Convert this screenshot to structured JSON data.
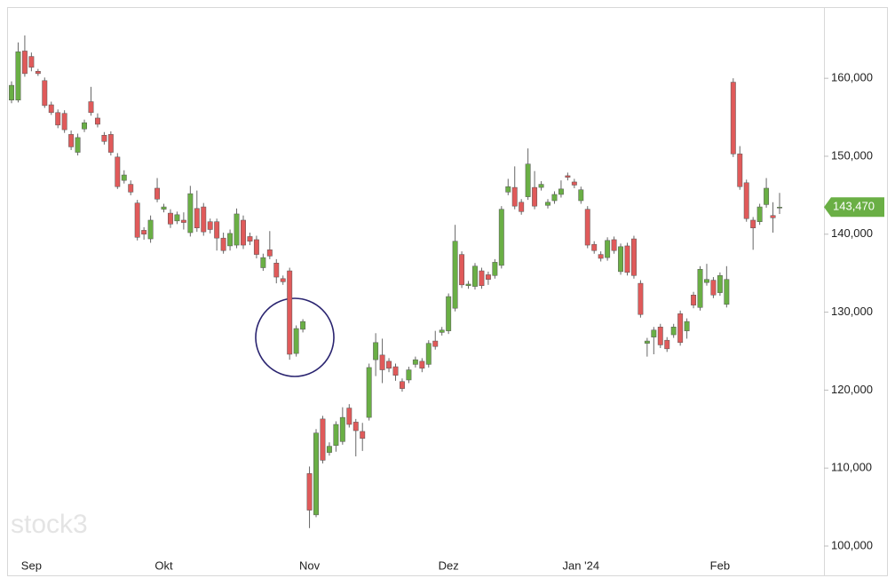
{
  "chart_data": {
    "type": "candlestick",
    "watermark": "stock3",
    "categories": [
      null,
      null,
      null,
      "Sep",
      null,
      null,
      null,
      null,
      null,
      null,
      null,
      null,
      null,
      null,
      null,
      null,
      null,
      null,
      null,
      null,
      null,
      null,
      null,
      "Okt",
      null,
      null,
      null,
      null,
      null,
      null,
      null,
      null,
      null,
      null,
      null,
      null,
      null,
      null,
      null,
      null,
      null,
      null,
      null,
      null,
      null,
      "Nov",
      null,
      null,
      null,
      null,
      null,
      null,
      null,
      null,
      null,
      null,
      null,
      null,
      null,
      null,
      null,
      null,
      null,
      null,
      null,
      null,
      "Dez",
      null,
      null,
      null,
      null,
      null,
      null,
      null,
      null,
      null,
      null,
      null,
      null,
      null,
      null,
      null,
      null,
      null,
      null,
      null,
      "Jan '24",
      null,
      null,
      null,
      null,
      null,
      null,
      null,
      null,
      null,
      null,
      null,
      null,
      null,
      null,
      null,
      null,
      null,
      null,
      null,
      null,
      "Feb",
      null,
      null,
      null,
      null,
      null,
      null,
      null,
      null,
      null
    ],
    "open": [
      157200,
      157200,
      163500,
      162800,
      160900,
      159700,
      156600,
      155600,
      155500,
      152800,
      150500,
      153500,
      157000,
      154900,
      152700,
      152800,
      149900,
      146900,
      146400,
      144000,
      140500,
      139400,
      145900,
      143200,
      142700,
      141700,
      141800,
      140200,
      143300,
      143500,
      141600,
      141600,
      139500,
      138500,
      138600,
      141800,
      139700,
      139300,
      135700,
      138000,
      136300,
      134300,
      135300,
      124700,
      127800,
      109300,
      104000,
      116300,
      112000,
      112900,
      113400,
      117700,
      115900,
      114700,
      116500,
      123900,
      124500,
      123700,
      123000,
      121100,
      121300,
      123300,
      123700,
      123300,
      126300,
      127400,
      127600,
      130500,
      137400,
      133400,
      133300,
      135300,
      134800,
      134700,
      136000,
      145400,
      146000,
      144100,
      144800,
      146000,
      146000,
      143700,
      144300,
      145100,
      147500,
      146700,
      144300,
      143200,
      138700,
      137400,
      137000,
      139300,
      135200,
      138500,
      139400,
      133700,
      126000,
      126800,
      128100,
      126400,
      127100,
      129800,
      127600,
      132200,
      130600,
      133800,
      134100,
      132500,
      131000,
      159500,
      150300,
      146600,
      141800,
      141600,
      143800,
      142400,
      143400
    ],
    "high": [
      159600,
      164600,
      165500,
      163300,
      161200,
      160100,
      157000,
      156000,
      155900,
      153300,
      152900,
      154700,
      158900,
      155500,
      153100,
      153200,
      150400,
      148200,
      146900,
      144400,
      140900,
      142400,
      147200,
      143900,
      143200,
      142900,
      142800,
      146200,
      145600,
      144000,
      142000,
      142000,
      140200,
      140600,
      143300,
      142400,
      140200,
      139800,
      137500,
      140400,
      136800,
      134700,
      135700,
      128300,
      129100,
      110200,
      115000,
      116700,
      113300,
      116000,
      117800,
      118200,
      116300,
      115800,
      123400,
      127300,
      126600,
      124100,
      123400,
      121500,
      123000,
      124300,
      124100,
      126400,
      127600,
      128100,
      132400,
      141200,
      137800,
      134000,
      136300,
      135700,
      135200,
      136800,
      143600,
      147100,
      148700,
      144500,
      151000,
      148100,
      146800,
      144500,
      145500,
      146900,
      147900,
      147100,
      146100,
      143600,
      139100,
      137800,
      139600,
      139700,
      138800,
      138900,
      139800,
      134100,
      126700,
      128100,
      128500,
      126800,
      128500,
      130200,
      129200,
      132600,
      135900,
      136200,
      134500,
      135100,
      135900,
      160000,
      151300,
      147000,
      142200,
      143900,
      147200,
      144100,
      145300
    ],
    "low": [
      156800,
      156900,
      160200,
      160900,
      160300,
      156200,
      155300,
      153600,
      153000,
      150800,
      150100,
      153100,
      155200,
      153700,
      151500,
      150100,
      145800,
      146500,
      145000,
      139200,
      139300,
      138900,
      144100,
      142800,
      140800,
      141300,
      140600,
      139700,
      140300,
      139800,
      140100,
      137900,
      137500,
      137900,
      138200,
      138100,
      138600,
      136900,
      135300,
      136800,
      133700,
      133500,
      123900,
      124300,
      127400,
      102300,
      103700,
      110600,
      111600,
      112100,
      113000,
      115200,
      111500,
      112200,
      116100,
      121800,
      120900,
      122300,
      121200,
      119800,
      120900,
      122900,
      122300,
      122900,
      125200,
      127000,
      127200,
      130100,
      133100,
      133000,
      132900,
      133000,
      133500,
      134300,
      135600,
      145000,
      143200,
      142500,
      144400,
      143200,
      145600,
      143300,
      143900,
      144700,
      146900,
      145900,
      143900,
      138200,
      137500,
      136500,
      136600,
      137500,
      134800,
      134700,
      134300,
      129300,
      124300,
      124600,
      125400,
      124900,
      126700,
      125700,
      126600,
      130500,
      130200,
      133400,
      131800,
      132100,
      130600,
      149900,
      145700,
      141600,
      138000,
      141200,
      143400,
      140200,
      142600
    ],
    "close": [
      159100,
      163400,
      160600,
      161400,
      160600,
      156500,
      155600,
      154000,
      153400,
      151200,
      152400,
      154300,
      155600,
      154100,
      151900,
      150500,
      146100,
      147600,
      145400,
      139600,
      140000,
      141800,
      144500,
      143500,
      141300,
      142500,
      141500,
      145200,
      140800,
      140300,
      140600,
      139500,
      137900,
      140100,
      142600,
      138600,
      139100,
      137400,
      137000,
      137200,
      134500,
      133900,
      124600,
      127900,
      128800,
      104600,
      114500,
      111000,
      112800,
      115600,
      116500,
      115600,
      114800,
      113800,
      122900,
      126100,
      122600,
      122800,
      121900,
      120200,
      122600,
      123900,
      122800,
      126000,
      125600,
      127700,
      132000,
      139100,
      133500,
      133600,
      135900,
      133400,
      134200,
      136400,
      143200,
      146100,
      143600,
      142900,
      149000,
      143600,
      146400,
      144100,
      145100,
      145800,
      147300,
      146300,
      145700,
      138600,
      137900,
      136900,
      139200,
      137900,
      138400,
      135100,
      134700,
      129700,
      126300,
      127700,
      125800,
      125300,
      128100,
      126100,
      128800,
      130900,
      135500,
      134200,
      132200,
      134700,
      134200,
      150300,
      146100,
      142000,
      140800,
      143500,
      145900,
      142100,
      143470
    ],
    "up_color": "#6aaf45",
    "down_color": "#e05a5a",
    "ylim": [
      96240,
      169130
    ],
    "yticks": [
      {
        "value": 100000,
        "label": "100,000"
      },
      {
        "value": 110000,
        "label": "110,000"
      },
      {
        "value": 120000,
        "label": "120,000"
      },
      {
        "value": 130000,
        "label": "130,000"
      },
      {
        "value": 140000,
        "label": "140,000"
      },
      {
        "value": 150000,
        "label": "150,000"
      },
      {
        "value": 160000,
        "label": "160,000"
      }
    ],
    "last_price": {
      "value": 143470,
      "label": "143,470"
    },
    "last_price_color": "#6aaf45"
  }
}
